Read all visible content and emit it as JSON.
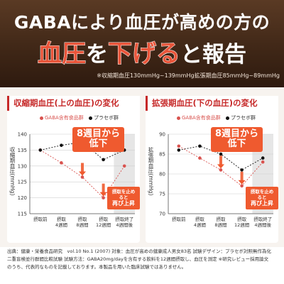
{
  "header": {
    "line1": "GABAにより血圧が高めの方の",
    "line2_part1": "血圧",
    "line2_part2": "を",
    "line2_part3": "下げる",
    "line2_part4": "と報告",
    "note": "※収縮期血圧130mmHg~139mmHg拡張期血圧85mmHg~89mmHg"
  },
  "colors": {
    "gaba": "#d9534f",
    "placebo": "#111111",
    "accent": "#ef5a2f",
    "header_bg": "#3e2616"
  },
  "legend": {
    "gaba": "GABA含有食品群",
    "placebo": "プラセボ群"
  },
  "callouts": {
    "main_line1": "8週目から",
    "main_line2": "低下",
    "sub_line1": "摂取を止めると",
    "sub_line2": "再び上昇"
  },
  "chart_data": [
    {
      "type": "line",
      "title": "収縮期血圧(上の血圧)の変化",
      "ylabel": "収縮期血圧(mmHg)",
      "xlabel": "",
      "categories": [
        "摂取前",
        "摂取\n4週間",
        "摂取\n8週間",
        "摂取\n12週間",
        "摂取終了\n4週間後"
      ],
      "ylim": [
        115,
        140
      ],
      "yticks": [
        115,
        120,
        125,
        130,
        135,
        140
      ],
      "series": [
        {
          "name": "GABA含有食品群",
          "values": [
            135,
            131,
            126.5,
            120,
            130
          ]
        },
        {
          "name": "プラセボ群",
          "values": [
            135,
            136.5,
            137.5,
            132,
            135
          ]
        }
      ],
      "shaded_category_index": 4
    },
    {
      "type": "line",
      "title": "拡張期血圧(下の血圧)の変化",
      "ylabel": "拡張期血圧(mmHg)",
      "xlabel": "",
      "categories": [
        "摂取前",
        "摂取\n4週間",
        "摂取\n8週間",
        "摂取\n12週間",
        "摂取終了\n4週間後"
      ],
      "ylim": [
        70,
        90
      ],
      "yticks": [
        70,
        75,
        80,
        85,
        90
      ],
      "series": [
        {
          "name": "GABA含有食品群",
          "values": [
            87,
            84,
            81,
            77,
            83
          ]
        },
        {
          "name": "プラセボ群",
          "values": [
            86,
            87,
            85,
            81,
            84
          ]
        }
      ],
      "shaded_category_index": 4
    }
  ],
  "footer": {
    "line1": "出典：健康・栄養食品研究　vol.10 No.1 (2007) 対象：血圧が高めの健康成人男女83名 試験デザイン：プラセボ対照無作為化",
    "line2": "二重盲検並行群間比較試験 試験方法：GABA20mg/dayを含有する飲料を12週間摂取し、血圧を測定 ※研究レビュー採用論文",
    "line3": "のうち、代表的なものを記載しております。本製品を用いた臨床試験ではありません。"
  }
}
